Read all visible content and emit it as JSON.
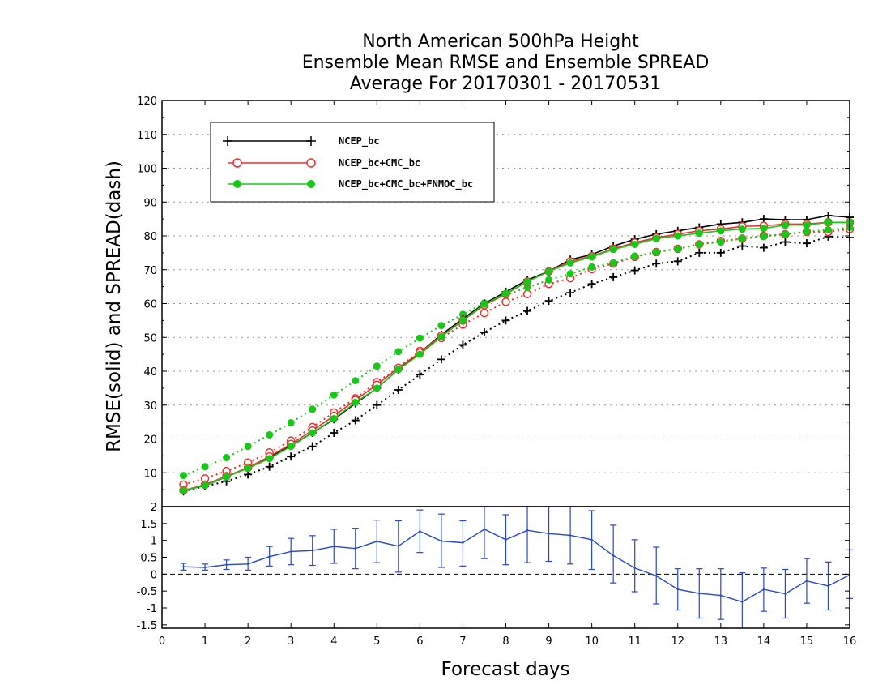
{
  "title": {
    "line1": "North American 500hPa Height",
    "line2": "Ensemble Mean RMSE and Ensemble SPREAD",
    "line3": "Average For 20170301 - 20170531"
  },
  "colors": {
    "ncep": "#000000",
    "ncep_cmc": "#e83232",
    "ncep_cmc_fnmoc": "#18c818",
    "diff": "#2848c8",
    "grid": "#999999"
  },
  "chart_data": [
    {
      "type": "line",
      "ylabel": "RMSE(solid) and SPREAD(dash)",
      "xlim": [
        0,
        16
      ],
      "ylim": [
        0,
        120
      ],
      "yticks": [
        10,
        20,
        30,
        40,
        50,
        60,
        70,
        80,
        90,
        100,
        110,
        120
      ],
      "grid": true,
      "legend_position": "top-left",
      "x": [
        0.5,
        1,
        1.5,
        2,
        2.5,
        3,
        3.5,
        4,
        4.5,
        5,
        5.5,
        6,
        6.5,
        7,
        7.5,
        8,
        8.5,
        9,
        9.5,
        10,
        10.5,
        11,
        11.5,
        12,
        12.5,
        13,
        13.5,
        14,
        14.5,
        15,
        15.5,
        16
      ],
      "series": [
        {
          "name": "NCEP_bc",
          "style": "solid",
          "marker": "plus",
          "color": "#000000",
          "values": [
            4.8,
            6.2,
            8.8,
            11.5,
            14.5,
            18,
            21.8,
            25.8,
            30.5,
            35,
            40.5,
            45.5,
            50.8,
            55.5,
            60,
            63.5,
            67,
            69.5,
            73,
            74.5,
            77,
            79,
            80.5,
            81.5,
            82.5,
            83.5,
            84,
            85,
            84.8,
            84.8,
            86,
            85.5
          ]
        },
        {
          "name": "NCEP_bc+CMC_bc",
          "style": "solid",
          "marker": "open-circle",
          "color": "#e83232",
          "values": [
            4.8,
            6.5,
            9,
            11.5,
            14.8,
            18.5,
            22.5,
            26.8,
            31.5,
            36,
            41,
            45.5,
            50.5,
            55,
            59.5,
            62.8,
            66.5,
            69.5,
            72.5,
            74,
            76.2,
            78,
            79.5,
            80.5,
            81.5,
            82,
            82.8,
            83,
            83.5,
            83.5,
            84,
            84
          ]
        },
        {
          "name": "NCEP_bc+CMC_bc+FNMOC_bc",
          "style": "solid",
          "marker": "filled-circle",
          "color": "#18c818",
          "values": [
            4.8,
            6.3,
            8.8,
            11.3,
            14.2,
            17.8,
            21.8,
            26,
            30.8,
            35,
            40.5,
            45,
            50.2,
            55,
            59.8,
            63,
            66.5,
            69.5,
            72,
            73.8,
            76,
            77.5,
            79.2,
            80,
            80.8,
            81.5,
            82,
            82.2,
            83.2,
            83.2,
            84,
            84
          ]
        },
        {
          "name": "NCEP_bc spread",
          "style": "dash",
          "marker": "plus",
          "color": "#000000",
          "values": [
            4.5,
            6,
            7.5,
            9.5,
            11.8,
            14.8,
            17.8,
            21.8,
            25.5,
            30,
            34.5,
            39,
            43.5,
            47.8,
            51.5,
            55,
            57.8,
            60.8,
            63.2,
            65.8,
            67.8,
            69.8,
            71.8,
            72.5,
            75,
            75,
            77,
            76.5,
            78.2,
            77.8,
            79.8,
            79.5
          ]
        },
        {
          "name": "NCEP_bc+CMC_bc spread",
          "style": "dash",
          "marker": "open-circle",
          "color": "#e83232",
          "values": [
            6.5,
            8.3,
            10.5,
            13,
            16,
            19.5,
            23.5,
            27.8,
            32,
            36.8,
            41,
            46,
            49.8,
            53.8,
            57.2,
            60.5,
            62.8,
            65.8,
            67.5,
            70.2,
            71.8,
            73.8,
            75.2,
            76.2,
            77.5,
            78.5,
            79.2,
            80,
            80.5,
            81.2,
            81.2,
            82
          ]
        },
        {
          "name": "NCEP_bc+CMC_bc+FNMOC_bc spread",
          "style": "dash",
          "marker": "filled-circle",
          "color": "#18c818",
          "values": [
            9.2,
            11.8,
            14.5,
            17.8,
            21.2,
            24.8,
            28.8,
            33,
            37.2,
            41.5,
            45.8,
            49.8,
            53.5,
            56.8,
            60.2,
            62.5,
            64.8,
            67,
            68.8,
            70.8,
            72,
            74,
            75.2,
            76.2,
            77.5,
            78.2,
            79.2,
            79.8,
            80.5,
            81.2,
            81.8,
            82.5
          ]
        }
      ]
    },
    {
      "type": "line",
      "xlabel": "Forecast days",
      "xlim": [
        0,
        16
      ],
      "ylim": [
        -1.6,
        2
      ],
      "yticks": [
        -1.5,
        -1,
        -0.5,
        0,
        0.5,
        1,
        1.5,
        2
      ],
      "xticks": [
        0,
        1,
        2,
        3,
        4,
        5,
        6,
        7,
        8,
        9,
        10,
        11,
        12,
        13,
        14,
        15,
        16
      ],
      "zero_line": true,
      "x": [
        0.5,
        1,
        1.5,
        2,
        2.5,
        3,
        3.5,
        4,
        4.5,
        5,
        5.5,
        6,
        6.5,
        7,
        7.5,
        8,
        8.5,
        9,
        9.5,
        10,
        10.5,
        11,
        11.5,
        12,
        12.5,
        13,
        13.5,
        14,
        14.5,
        15,
        15.5,
        16
      ],
      "series": [
        {
          "name": "difference",
          "color": "#2848c8",
          "values": [
            0.22,
            0.2,
            0.28,
            0.3,
            0.52,
            0.67,
            0.7,
            0.82,
            0.76,
            0.97,
            0.83,
            1.27,
            0.98,
            0.93,
            1.33,
            1.02,
            1.3,
            1.2,
            1.15,
            1.02,
            0.55,
            0.18,
            -0.05,
            -0.45,
            -0.57,
            -0.63,
            -0.82,
            -0.45,
            -0.58,
            -0.2,
            -0.35,
            -0.02
          ],
          "err_low": [
            0.12,
            0.12,
            0.14,
            0.12,
            0.24,
            0.28,
            0.26,
            0.32,
            0.16,
            0.34,
            0.06,
            0.64,
            0.2,
            0.24,
            0.46,
            0.28,
            0.34,
            0.38,
            0.3,
            0.14,
            -0.26,
            -0.52,
            -0.88,
            -1.06,
            -1.3,
            -1.34,
            -1.66,
            -1.1,
            -1.3,
            -0.86,
            -1.06,
            -0.72
          ],
          "err_high": [
            0.32,
            0.3,
            0.42,
            0.5,
            0.82,
            1.06,
            1.14,
            1.33,
            1.36,
            1.6,
            1.58,
            1.9,
            1.78,
            1.58,
            2.0,
            1.76,
            2.0,
            2.0,
            2.0,
            1.88,
            1.45,
            1.02,
            0.8,
            0.16,
            0.16,
            0.16,
            0.04,
            0.18,
            0.14,
            0.46,
            0.36,
            0.72
          ]
        }
      ]
    }
  ]
}
